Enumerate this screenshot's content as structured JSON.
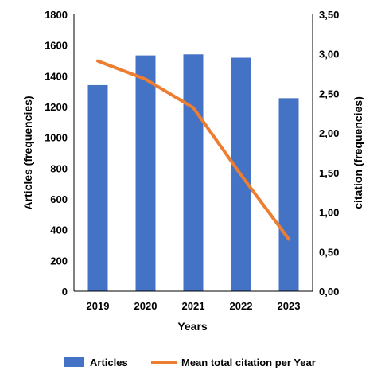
{
  "chart_data": {
    "type": "bar",
    "categories": [
      "2019",
      "2020",
      "2021",
      "2022",
      "2023"
    ],
    "series": [
      {
        "name": "Articles",
        "type": "bar",
        "axis": "left",
        "color": "#4472C4",
        "values": [
          1340,
          1533,
          1540,
          1518,
          1255
        ]
      },
      {
        "name": "Mean total citation per Year",
        "type": "line",
        "axis": "right",
        "color": "#ED7D31",
        "values": [
          2.91,
          2.68,
          2.32,
          1.47,
          0.66
        ]
      }
    ],
    "xlabel": "Years",
    "ylabel": "Articles (frequencies)",
    "y2label": "citation (frequencies)",
    "ylim": [
      0,
      1800
    ],
    "yticks": [
      "0",
      "200",
      "400",
      "600",
      "800",
      "1000",
      "1200",
      "1400",
      "1600",
      "1800"
    ],
    "y2lim": [
      0,
      3.5
    ],
    "y2ticks": [
      "0,00",
      "0,50",
      "1,00",
      "1,50",
      "2,00",
      "2,50",
      "3,00",
      "3,50"
    ],
    "grid": false,
    "legend_position": "bottom"
  }
}
